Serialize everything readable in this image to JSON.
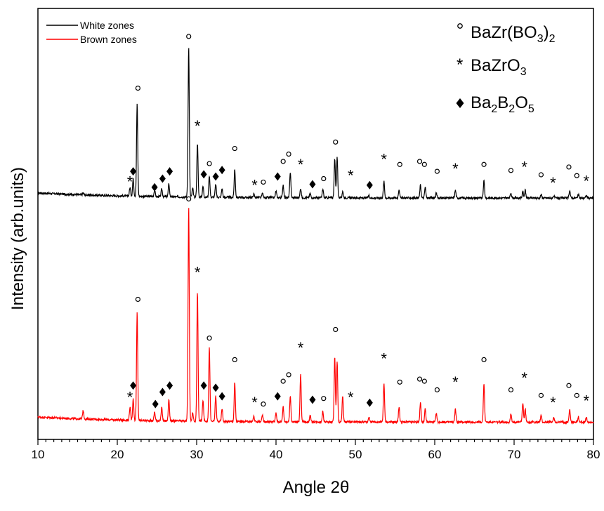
{
  "chart_data": {
    "type": "line",
    "title": "",
    "xlabel": "Angle 2θ",
    "ylabel": "Intensity (arb.units)",
    "xlim": [
      10,
      80
    ],
    "ylim": [
      0,
      1
    ],
    "x_ticks": [
      "10",
      "20",
      "30",
      "40",
      "50",
      "60",
      "70",
      "80"
    ],
    "grid": false,
    "legend": {
      "placement": "top-left",
      "entries": [
        {
          "label": "White zones",
          "color": "#000000"
        },
        {
          "label": "Brown zones",
          "color": "#ff0000"
        }
      ]
    },
    "phase_key": [
      {
        "marker": "circle",
        "label_main": "BaZr(BO",
        "sub1": "3",
        "label_mid": ")",
        "sub2": "2",
        "label_end": ""
      },
      {
        "marker": "asterisk",
        "label_main": "BaZrO",
        "sub1": "3",
        "label_mid": "",
        "sub2": "",
        "label_end": ""
      },
      {
        "marker": "diamond",
        "label_main": "Ba",
        "sub1": "2",
        "label_mid": "B",
        "sub2": "2",
        "label_end": "O",
        "sub3": "5"
      }
    ],
    "series": [
      {
        "name": "White zones",
        "color": "#000000",
        "baseline": 0.56,
        "peaks": [
          [
            15.7,
            0.004
          ],
          [
            21.6,
            0.02
          ],
          [
            22.0,
            0.04
          ],
          [
            22.5,
            0.215
          ],
          [
            24.7,
            0.015
          ],
          [
            25.6,
            0.018
          ],
          [
            26.5,
            0.03
          ],
          [
            28.9,
            0.015
          ],
          [
            29.0,
            0.34
          ],
          [
            29.5,
            0.02
          ],
          [
            30.1,
            0.125
          ],
          [
            30.8,
            0.025
          ],
          [
            31.6,
            0.05
          ],
          [
            32.4,
            0.03
          ],
          [
            33.2,
            0.02
          ],
          [
            34.8,
            0.065
          ],
          [
            37.2,
            0.008
          ],
          [
            38.3,
            0.01
          ],
          [
            40.0,
            0.015
          ],
          [
            40.9,
            0.03
          ],
          [
            41.8,
            0.06
          ],
          [
            43.1,
            0.022
          ],
          [
            44.3,
            0.01
          ],
          [
            45.9,
            0.02
          ],
          [
            47.4,
            0.09
          ],
          [
            47.7,
            0.095
          ],
          [
            48.4,
            0.015
          ],
          [
            51.7,
            0.006
          ],
          [
            53.6,
            0.038
          ],
          [
            55.5,
            0.02
          ],
          [
            58.2,
            0.03
          ],
          [
            58.8,
            0.025
          ],
          [
            60.2,
            0.012
          ],
          [
            62.6,
            0.018
          ],
          [
            66.2,
            0.04
          ],
          [
            69.6,
            0.012
          ],
          [
            71.1,
            0.015
          ],
          [
            71.4,
            0.018
          ],
          [
            73.4,
            0.008
          ],
          [
            75.0,
            0.005
          ],
          [
            77.0,
            0.018
          ],
          [
            78.1,
            0.008
          ],
          [
            79.1,
            0.006
          ]
        ],
        "markers": [
          {
            "x": 22.6,
            "y": 0.815,
            "type": "circle"
          },
          {
            "x": 29.0,
            "y": 0.935,
            "type": "circle"
          },
          {
            "x": 30.1,
            "y": 0.73,
            "type": "asterisk"
          },
          {
            "x": 21.6,
            "y": 0.6,
            "type": "asterisk"
          },
          {
            "x": 22.0,
            "y": 0.622,
            "type": "diamond"
          },
          {
            "x": 24.7,
            "y": 0.585,
            "type": "diamond"
          },
          {
            "x": 25.7,
            "y": 0.605,
            "type": "diamond"
          },
          {
            "x": 26.6,
            "y": 0.622,
            "type": "diamond"
          },
          {
            "x": 30.9,
            "y": 0.615,
            "type": "diamond"
          },
          {
            "x": 31.6,
            "y": 0.64,
            "type": "circle"
          },
          {
            "x": 32.4,
            "y": 0.61,
            "type": "diamond"
          },
          {
            "x": 33.2,
            "y": 0.625,
            "type": "diamond"
          },
          {
            "x": 34.8,
            "y": 0.675,
            "type": "circle"
          },
          {
            "x": 37.3,
            "y": 0.592,
            "type": "asterisk"
          },
          {
            "x": 38.4,
            "y": 0.597,
            "type": "circle"
          },
          {
            "x": 40.2,
            "y": 0.61,
            "type": "diamond"
          },
          {
            "x": 40.9,
            "y": 0.645,
            "type": "circle"
          },
          {
            "x": 41.6,
            "y": 0.662,
            "type": "circle"
          },
          {
            "x": 43.1,
            "y": 0.64,
            "type": "asterisk"
          },
          {
            "x": 44.6,
            "y": 0.592,
            "type": "diamond"
          },
          {
            "x": 46.0,
            "y": 0.605,
            "type": "circle"
          },
          {
            "x": 47.5,
            "y": 0.69,
            "type": "circle"
          },
          {
            "x": 49.4,
            "y": 0.615,
            "type": "asterisk"
          },
          {
            "x": 51.8,
            "y": 0.59,
            "type": "diamond"
          },
          {
            "x": 53.6,
            "y": 0.652,
            "type": "asterisk"
          },
          {
            "x": 55.6,
            "y": 0.638,
            "type": "circle"
          },
          {
            "x": 58.1,
            "y": 0.645,
            "type": "circle"
          },
          {
            "x": 58.7,
            "y": 0.638,
            "type": "circle"
          },
          {
            "x": 60.3,
            "y": 0.622,
            "type": "circle"
          },
          {
            "x": 62.6,
            "y": 0.63,
            "type": "asterisk"
          },
          {
            "x": 66.2,
            "y": 0.638,
            "type": "circle"
          },
          {
            "x": 69.6,
            "y": 0.624,
            "type": "circle"
          },
          {
            "x": 71.3,
            "y": 0.634,
            "type": "asterisk"
          },
          {
            "x": 73.4,
            "y": 0.614,
            "type": "circle"
          },
          {
            "x": 74.9,
            "y": 0.598,
            "type": "asterisk"
          },
          {
            "x": 76.9,
            "y": 0.632,
            "type": "circle"
          },
          {
            "x": 77.9,
            "y": 0.612,
            "type": "circle"
          },
          {
            "x": 79.1,
            "y": 0.602,
            "type": "asterisk"
          }
        ]
      },
      {
        "name": "Brown zones",
        "color": "#ff0000",
        "baseline": 0.04,
        "peaks": [
          [
            15.7,
            0.02
          ],
          [
            21.6,
            0.03
          ],
          [
            22.0,
            0.05
          ],
          [
            22.5,
            0.25
          ],
          [
            24.7,
            0.02
          ],
          [
            25.6,
            0.03
          ],
          [
            26.5,
            0.05
          ],
          [
            28.9,
            0.02
          ],
          [
            29.0,
            0.49
          ],
          [
            29.5,
            0.02
          ],
          [
            30.1,
            0.3
          ],
          [
            30.8,
            0.05
          ],
          [
            31.6,
            0.17
          ],
          [
            32.4,
            0.06
          ],
          [
            33.2,
            0.03
          ],
          [
            34.8,
            0.09
          ],
          [
            37.2,
            0.012
          ],
          [
            38.3,
            0.015
          ],
          [
            40.0,
            0.02
          ],
          [
            40.9,
            0.035
          ],
          [
            41.8,
            0.06
          ],
          [
            43.1,
            0.11
          ],
          [
            44.3,
            0.015
          ],
          [
            45.9,
            0.025
          ],
          [
            47.4,
            0.15
          ],
          [
            47.7,
            0.14
          ],
          [
            48.4,
            0.06
          ],
          [
            51.7,
            0.012
          ],
          [
            53.6,
            0.09
          ],
          [
            55.5,
            0.035
          ],
          [
            58.2,
            0.045
          ],
          [
            58.8,
            0.03
          ],
          [
            60.2,
            0.02
          ],
          [
            62.6,
            0.03
          ],
          [
            66.2,
            0.09
          ],
          [
            69.6,
            0.02
          ],
          [
            71.1,
            0.045
          ],
          [
            71.4,
            0.03
          ],
          [
            73.4,
            0.015
          ],
          [
            75.0,
            0.01
          ],
          [
            77.0,
            0.03
          ],
          [
            78.1,
            0.012
          ],
          [
            79.1,
            0.01
          ]
        ],
        "markers": [
          {
            "x": 22.6,
            "y": 0.325,
            "type": "circle"
          },
          {
            "x": 29.0,
            "y": 0.558,
            "type": "circle"
          },
          {
            "x": 30.1,
            "y": 0.39,
            "type": "asterisk"
          },
          {
            "x": 21.6,
            "y": 0.1,
            "type": "asterisk"
          },
          {
            "x": 22.0,
            "y": 0.125,
            "type": "diamond"
          },
          {
            "x": 24.8,
            "y": 0.082,
            "type": "diamond"
          },
          {
            "x": 25.7,
            "y": 0.11,
            "type": "diamond"
          },
          {
            "x": 26.6,
            "y": 0.125,
            "type": "diamond"
          },
          {
            "x": 30.9,
            "y": 0.125,
            "type": "diamond"
          },
          {
            "x": 31.6,
            "y": 0.235,
            "type": "circle"
          },
          {
            "x": 32.4,
            "y": 0.12,
            "type": "diamond"
          },
          {
            "x": 33.2,
            "y": 0.1,
            "type": "diamond"
          },
          {
            "x": 34.8,
            "y": 0.185,
            "type": "circle"
          },
          {
            "x": 37.3,
            "y": 0.088,
            "type": "asterisk"
          },
          {
            "x": 38.4,
            "y": 0.082,
            "type": "circle"
          },
          {
            "x": 40.2,
            "y": 0.1,
            "type": "diamond"
          },
          {
            "x": 40.9,
            "y": 0.135,
            "type": "circle"
          },
          {
            "x": 41.6,
            "y": 0.15,
            "type": "circle"
          },
          {
            "x": 43.1,
            "y": 0.215,
            "type": "asterisk"
          },
          {
            "x": 44.6,
            "y": 0.092,
            "type": "diamond"
          },
          {
            "x": 46.0,
            "y": 0.095,
            "type": "circle"
          },
          {
            "x": 47.5,
            "y": 0.255,
            "type": "circle"
          },
          {
            "x": 49.4,
            "y": 0.1,
            "type": "asterisk"
          },
          {
            "x": 51.8,
            "y": 0.085,
            "type": "diamond"
          },
          {
            "x": 53.6,
            "y": 0.19,
            "type": "asterisk"
          },
          {
            "x": 55.6,
            "y": 0.133,
            "type": "circle"
          },
          {
            "x": 58.1,
            "y": 0.14,
            "type": "circle"
          },
          {
            "x": 58.7,
            "y": 0.135,
            "type": "circle"
          },
          {
            "x": 60.3,
            "y": 0.115,
            "type": "circle"
          },
          {
            "x": 62.6,
            "y": 0.135,
            "type": "asterisk"
          },
          {
            "x": 66.2,
            "y": 0.185,
            "type": "circle"
          },
          {
            "x": 69.6,
            "y": 0.115,
            "type": "circle"
          },
          {
            "x": 71.3,
            "y": 0.145,
            "type": "asterisk"
          },
          {
            "x": 73.4,
            "y": 0.102,
            "type": "circle"
          },
          {
            "x": 74.9,
            "y": 0.088,
            "type": "asterisk"
          },
          {
            "x": 76.9,
            "y": 0.125,
            "type": "circle"
          },
          {
            "x": 77.9,
            "y": 0.102,
            "type": "circle"
          },
          {
            "x": 79.1,
            "y": 0.092,
            "type": "asterisk"
          }
        ]
      }
    ]
  }
}
